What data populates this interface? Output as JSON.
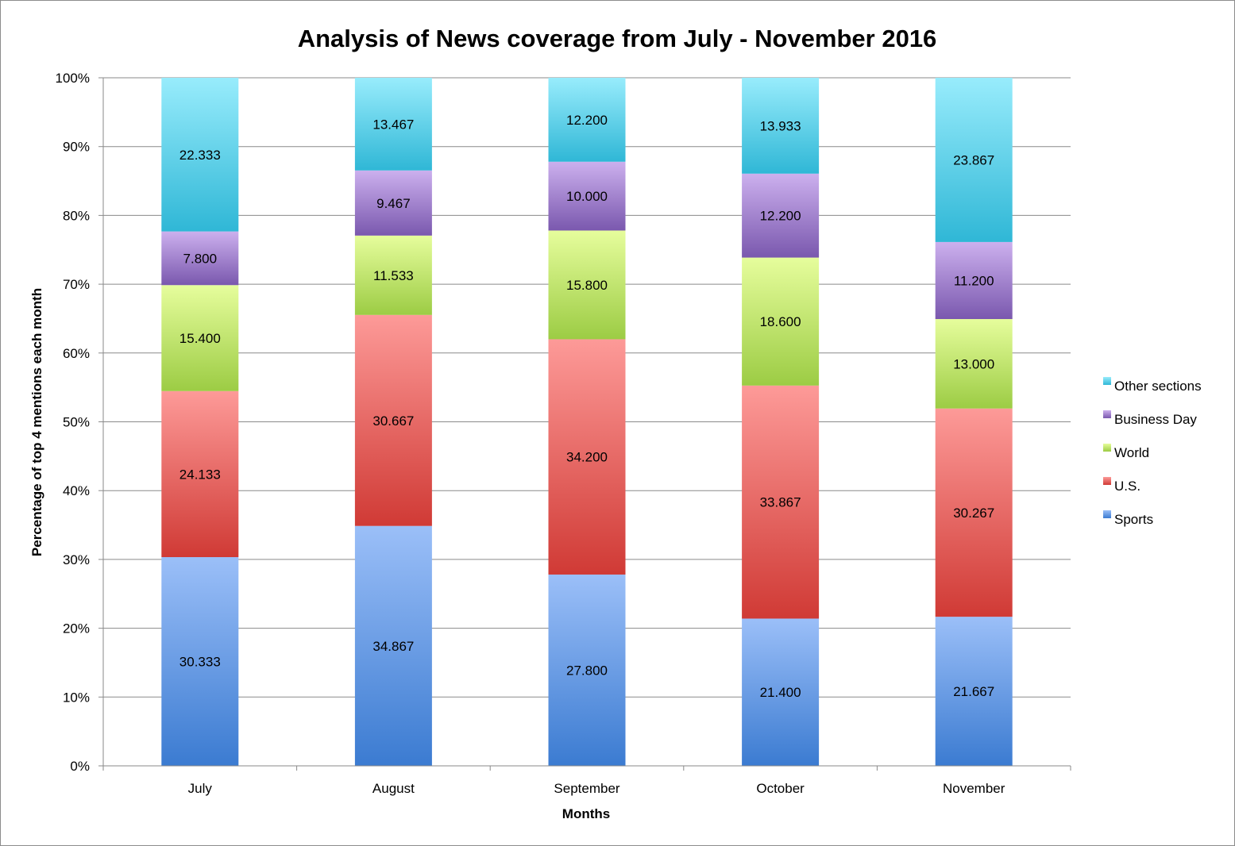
{
  "chart_data": {
    "type": "bar",
    "stacked": true,
    "percent": true,
    "title": "Analysis of News coverage from July - November 2016",
    "xlabel": "Months",
    "ylabel": "Percentage of top 4 mentions each month",
    "categories": [
      "July",
      "August",
      "September",
      "October",
      "November"
    ],
    "y_ticks": [
      "0%",
      "10%",
      "20%",
      "30%",
      "40%",
      "50%",
      "60%",
      "70%",
      "80%",
      "90%",
      "100%"
    ],
    "ylim": [
      0,
      100
    ],
    "grid": true,
    "legend_position": "right",
    "series": [
      {
        "name": "Sports",
        "values": [
          30.333,
          34.867,
          27.8,
          21.4,
          21.667
        ],
        "labels": [
          "30.333",
          "34.867",
          "27.800",
          "21.400",
          "21.667"
        ],
        "color_top": "#9bbff8",
        "color_bottom": "#3b7bd1"
      },
      {
        "name": "U.S.",
        "values": [
          24.133,
          30.667,
          34.2,
          33.867,
          30.267
        ],
        "labels": [
          "24.133",
          "30.667",
          "34.200",
          "33.867",
          "30.267"
        ],
        "color_top": "#fd9a98",
        "color_bottom": "#d03a35"
      },
      {
        "name": "World",
        "values": [
          15.4,
          11.533,
          15.8,
          18.6,
          13.0
        ],
        "labels": [
          "15.400",
          "11.533",
          "15.800",
          "18.600",
          "13.000"
        ],
        "color_top": "#e6fd9c",
        "color_bottom": "#9ccc44"
      },
      {
        "name": "Business Day",
        "values": [
          7.8,
          9.467,
          10.0,
          12.2,
          11.2
        ],
        "labels": [
          "7.800",
          "9.467",
          "10.000",
          "12.200",
          "11.200"
        ],
        "color_top": "#ccb0ee",
        "color_bottom": "#7a58ae"
      },
      {
        "name": "Other sections",
        "values": [
          22.333,
          13.467,
          12.2,
          13.933,
          23.867
        ],
        "labels": [
          "22.333",
          "13.467",
          "12.200",
          "13.933",
          "23.867"
        ],
        "color_top": "#98ecfc",
        "color_bottom": "#2fb7d6"
      }
    ],
    "legend_order": [
      "Other sections",
      "Business Day",
      "World",
      "U.S.",
      "Sports"
    ]
  }
}
